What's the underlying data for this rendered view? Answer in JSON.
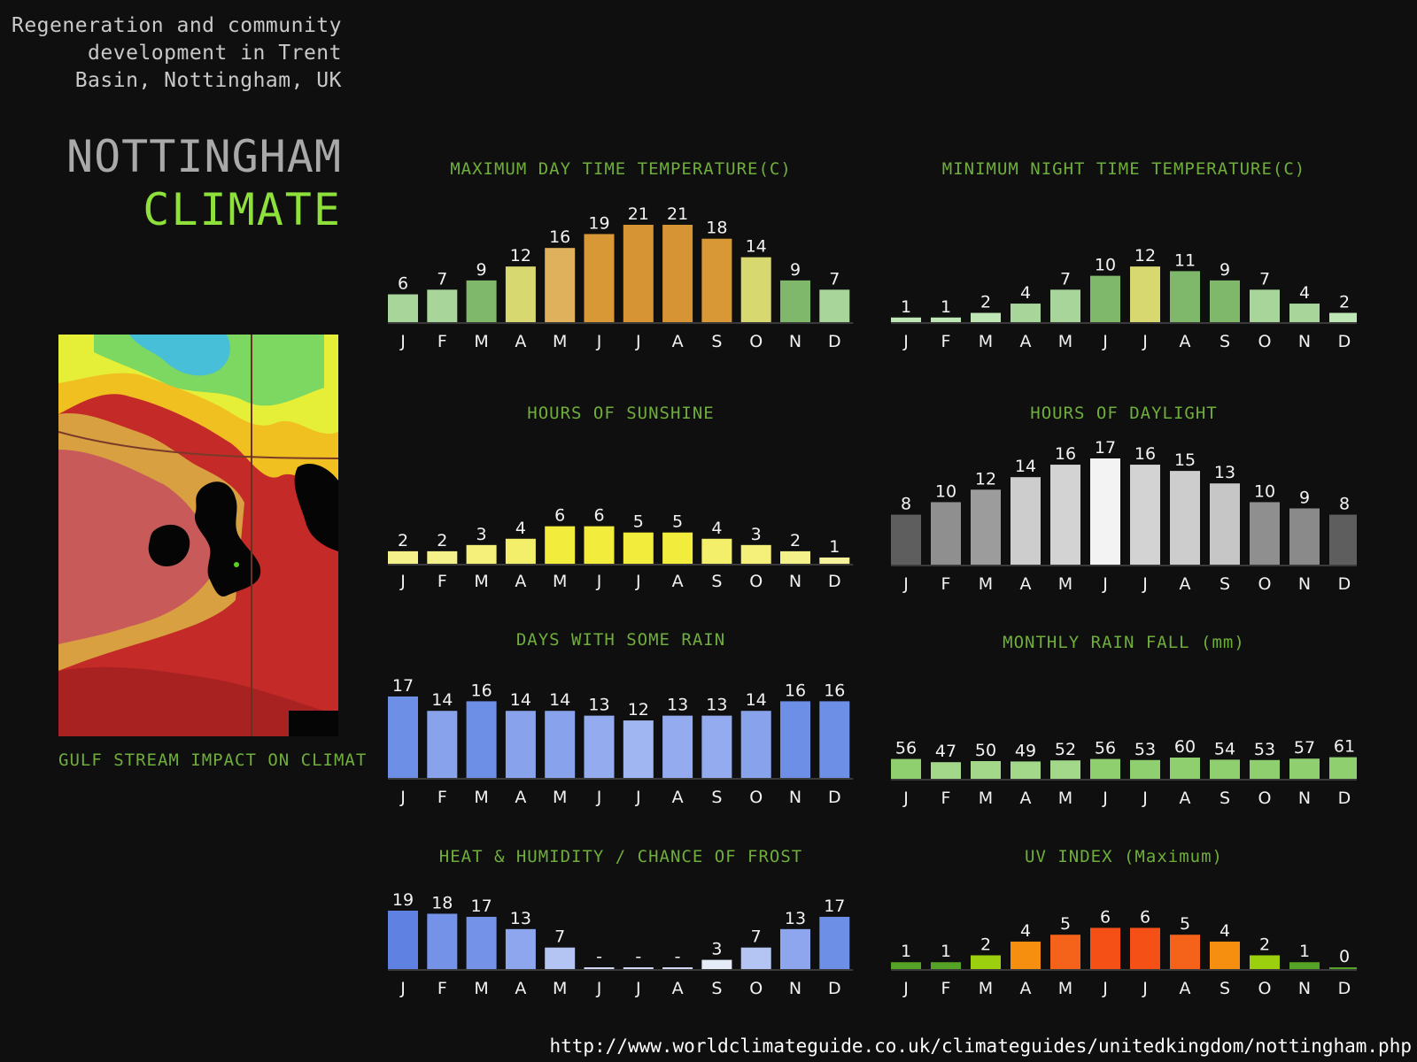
{
  "header": {
    "subtitle": "Regeneration and community\ndevelopment in Trent\nBasin, Nottingham, UK",
    "city": "NOTTINGHAM",
    "word": "CLIMATE"
  },
  "map": {
    "caption": "GULF STREAM IMPACT ON CLIMAT"
  },
  "source": "http://www.worldclimateguide.co.uk/climateguides/unitedkingdom/nottingham.php",
  "chart_data": [
    {
      "type": "bar",
      "title": "MAXIMUM DAY TIME TEMPERATURE(C)",
      "categories": [
        "J",
        "F",
        "M",
        "A",
        "M",
        "J",
        "J",
        "A",
        "S",
        "O",
        "N",
        "D"
      ],
      "values": [
        6,
        7,
        9,
        12,
        16,
        19,
        21,
        21,
        18,
        14,
        9,
        7
      ],
      "labels": [
        "6",
        "7",
        "9",
        "12",
        "16",
        "19",
        "21",
        "21",
        "18",
        "14",
        "9",
        "7"
      ],
      "colors": [
        "#a8d59a",
        "#a8d59a",
        "#7fb86a",
        "#d8d870",
        "#e0b15c",
        "#d99836",
        "#d69434",
        "#d69434",
        "#d99836",
        "#d8d870",
        "#7fb86a",
        "#a8d59a"
      ],
      "ylim": [
        0,
        21
      ]
    },
    {
      "type": "bar",
      "title": "MINIMUM NIGHT TIME TEMPERATURE(C)",
      "categories": [
        "J",
        "F",
        "M",
        "A",
        "M",
        "J",
        "J",
        "A",
        "S",
        "O",
        "N",
        "D"
      ],
      "values": [
        1,
        1,
        2,
        4,
        7,
        10,
        12,
        11,
        9,
        7,
        4,
        2
      ],
      "labels": [
        "1",
        "1",
        "2",
        "4",
        "7",
        "10",
        "12",
        "11",
        "9",
        "7",
        "4",
        "2"
      ],
      "colors": [
        "#bfe6b5",
        "#bfe6b5",
        "#bfe6b5",
        "#a8d59a",
        "#a8d59a",
        "#7fb86a",
        "#d8d870",
        "#7fb86a",
        "#7fb86a",
        "#a8d59a",
        "#a8d59a",
        "#bfe6b5"
      ],
      "ylim": [
        0,
        21
      ]
    },
    {
      "type": "bar",
      "title": "HOURS OF SUNSHINE",
      "categories": [
        "J",
        "F",
        "M",
        "A",
        "M",
        "J",
        "J",
        "A",
        "S",
        "O",
        "N",
        "D"
      ],
      "values": [
        2,
        2,
        3,
        4,
        6,
        6,
        5,
        5,
        4,
        3,
        2,
        1
      ],
      "labels": [
        "2",
        "2",
        "3",
        "4",
        "6",
        "6",
        "5",
        "5",
        "4",
        "3",
        "2",
        "1"
      ],
      "colors": [
        "#f4f08a",
        "#f4f08a",
        "#f4f07a",
        "#f3ef6a",
        "#f2ec3c",
        "#f2ec3c",
        "#f2ec3c",
        "#f2ec3c",
        "#f3ef6a",
        "#f4f07a",
        "#f4f08a",
        "#f6f29c"
      ],
      "ylim": [
        0,
        17
      ]
    },
    {
      "type": "bar",
      "title": "HOURS OF DAYLIGHT",
      "categories": [
        "J",
        "F",
        "M",
        "A",
        "M",
        "J",
        "J",
        "A",
        "S",
        "O",
        "N",
        "D"
      ],
      "values": [
        8,
        10,
        12,
        14,
        16,
        17,
        16,
        15,
        13,
        10,
        9,
        8
      ],
      "labels": [
        "8",
        "10",
        "12",
        "14",
        "16",
        "17",
        "16",
        "15",
        "13",
        "10",
        "9",
        "8"
      ],
      "colors": [
        "#5e5e5e",
        "#8f8f8f",
        "#9c9c9c",
        "#cdcdcd",
        "#d3d3d3",
        "#f3f3f3",
        "#d3d3d3",
        "#cdcdcd",
        "#c6c6c6",
        "#8f8f8f",
        "#8a8a8a",
        "#5e5e5e"
      ],
      "ylim": [
        0,
        17
      ]
    },
    {
      "type": "bar",
      "title": "DAYS WITH SOME RAIN",
      "categories": [
        "J",
        "F",
        "M",
        "A",
        "M",
        "J",
        "J",
        "A",
        "S",
        "O",
        "N",
        "D"
      ],
      "values": [
        17,
        14,
        16,
        14,
        14,
        13,
        12,
        13,
        13,
        14,
        16,
        16
      ],
      "labels": [
        "17",
        "14",
        "16",
        "14",
        "14",
        "13",
        "12",
        "13",
        "13",
        "14",
        "16",
        "16"
      ],
      "colors": [
        "#6e8fe6",
        "#88a2ec",
        "#6e8fe6",
        "#88a2ec",
        "#88a2ec",
        "#94acef",
        "#a0b6f2",
        "#94acef",
        "#94acef",
        "#88a2ec",
        "#6e8fe6",
        "#6e8fe6"
      ],
      "ylim": [
        0,
        17
      ]
    },
    {
      "type": "bar",
      "title": "MONTHLY RAIN FALL (mm)",
      "categories": [
        "J",
        "F",
        "M",
        "A",
        "M",
        "J",
        "J",
        "A",
        "S",
        "O",
        "N",
        "D"
      ],
      "values": [
        56,
        47,
        50,
        49,
        52,
        56,
        53,
        60,
        54,
        53,
        57,
        61
      ],
      "labels": [
        "56",
        "47",
        "50",
        "49",
        "52",
        "56",
        "53",
        "60",
        "54",
        "53",
        "57",
        "61"
      ],
      "colors": [
        "#8fcf70",
        "#a3d78a",
        "#a3d78a",
        "#a3d78a",
        "#a3d78a",
        "#8fcf70",
        "#8fcf70",
        "#8fcf70",
        "#8fcf70",
        "#8fcf70",
        "#8fcf70",
        "#8fcf70"
      ],
      "ylim": [
        0,
        250
      ]
    },
    {
      "type": "bar",
      "title": "HEAT & HUMIDITY / CHANCE OF FROST",
      "categories": [
        "J",
        "F",
        "M",
        "A",
        "M",
        "J",
        "J",
        "A",
        "S",
        "O",
        "N",
        "D"
      ],
      "values": [
        19,
        18,
        17,
        13,
        7,
        0,
        0,
        0,
        3,
        7,
        13,
        17
      ],
      "labels": [
        "19",
        "18",
        "17",
        "13",
        "7",
        "-",
        "-",
        "-",
        "3",
        "7",
        "13",
        "17"
      ],
      "colors": [
        "#5f82e2",
        "#7492e8",
        "#7492e8",
        "#8ea6ee",
        "#b4c4f3",
        "#d0d8f5",
        "#d0d8f5",
        "#d0d8f5",
        "#e6ebf8",
        "#b4c4f3",
        "#8ea6ee",
        "#6e8fe6"
      ],
      "ylim": [
        0,
        19
      ]
    },
    {
      "type": "bar",
      "title": "UV INDEX (Maximum)",
      "categories": [
        "J",
        "F",
        "M",
        "A",
        "M",
        "J",
        "J",
        "A",
        "S",
        "O",
        "N",
        "D"
      ],
      "values": [
        1,
        1,
        2,
        4,
        5,
        6,
        6,
        5,
        4,
        2,
        1,
        0
      ],
      "labels": [
        "1",
        "1",
        "2",
        "4",
        "5",
        "6",
        "6",
        "5",
        "4",
        "2",
        "1",
        "0"
      ],
      "colors": [
        "#54a326",
        "#54a326",
        "#9ccf0e",
        "#f68e10",
        "#f5621a",
        "#f55016",
        "#f55016",
        "#f5621a",
        "#f68e10",
        "#9ccf0e",
        "#54a326",
        "#54a326"
      ],
      "ylim": [
        0,
        8.5
      ]
    }
  ]
}
